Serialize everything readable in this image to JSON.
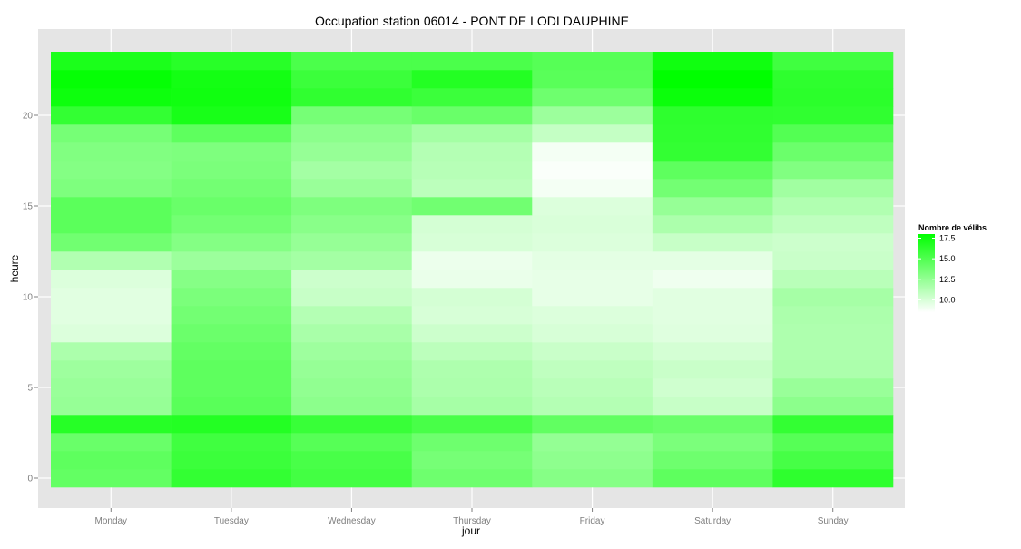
{
  "chart_data": {
    "type": "heatmap",
    "title": "Occupation station 06014 - PONT DE LODI DAUPHINE",
    "xlabel": "jour",
    "ylabel": "heure",
    "x_categories": [
      "Monday",
      "Tuesday",
      "Wednesday",
      "Thursday",
      "Friday",
      "Saturday",
      "Sunday"
    ],
    "y_values": [
      0,
      1,
      2,
      3,
      4,
      5,
      6,
      7,
      8,
      9,
      10,
      11,
      12,
      13,
      14,
      15,
      16,
      17,
      18,
      19,
      20,
      21,
      22,
      23
    ],
    "y_ticks": [
      0,
      5,
      10,
      15,
      20
    ],
    "grid": true,
    "legend": {
      "title": "Nombre de vélibs",
      "breaks": [
        10.0,
        12.5,
        15.0,
        17.5
      ],
      "break_labels": [
        "10.0",
        "12.5",
        "15.0",
        "17.5"
      ],
      "min": 8.5,
      "max": 18,
      "position": "right"
    },
    "color_low": "#ffffff",
    "color_high": "#00ff00",
    "panel_bg": "#e5e5e5",
    "values": [
      [
        14.3,
        16.1,
        15.5,
        13.9,
        13.0,
        14.5,
        16.3
      ],
      [
        14.5,
        15.8,
        15.3,
        13.6,
        12.7,
        13.9,
        15.4
      ],
      [
        14.1,
        15.6,
        14.8,
        13.9,
        12.5,
        13.4,
        14.8
      ],
      [
        16.6,
        16.7,
        15.9,
        15.3,
        14.4,
        14.1,
        16.1
      ],
      [
        12.4,
        14.7,
        12.8,
        11.8,
        11.3,
        10.6,
        12.8
      ],
      [
        12.3,
        14.5,
        12.6,
        11.6,
        11.1,
        10.3,
        12.3
      ],
      [
        12.1,
        14.5,
        12.4,
        11.5,
        10.9,
        10.5,
        11.6
      ],
      [
        11.6,
        14.3,
        12.1,
        11.0,
        10.5,
        10.1,
        11.5
      ],
      [
        9.8,
        14.0,
        11.7,
        10.4,
        10.0,
        9.7,
        11.5
      ],
      [
        9.6,
        13.7,
        11.3,
        10.0,
        9.8,
        9.6,
        11.6
      ],
      [
        9.6,
        13.4,
        10.6,
        10.1,
        9.4,
        9.6,
        11.8
      ],
      [
        9.8,
        13.0,
        10.4,
        9.3,
        9.4,
        9.1,
        11.1
      ],
      [
        11.4,
        12.2,
        11.9,
        9.2,
        9.5,
        9.5,
        10.5
      ],
      [
        13.8,
        13.1,
        12.4,
        10.0,
        9.8,
        10.6,
        10.4
      ],
      [
        14.6,
        13.7,
        12.9,
        10.1,
        9.9,
        11.6,
        10.9
      ],
      [
        14.6,
        14.1,
        13.3,
        13.8,
        9.8,
        12.4,
        11.4
      ],
      [
        13.3,
        13.7,
        12.3,
        11.0,
        8.9,
        13.7,
        12.0
      ],
      [
        13.1,
        13.4,
        11.9,
        11.2,
        8.7,
        14.5,
        13.2
      ],
      [
        13.2,
        13.3,
        12.4,
        11.3,
        8.9,
        16.1,
        14.0
      ],
      [
        13.6,
        14.5,
        12.8,
        11.9,
        10.7,
        16.2,
        14.9
      ],
      [
        16.1,
        17.1,
        13.6,
        14.1,
        12.2,
        16.3,
        16.2
      ],
      [
        17.5,
        17.4,
        16.2,
        15.8,
        13.9,
        17.6,
        16.4
      ],
      [
        17.8,
        17.3,
        15.8,
        16.7,
        14.7,
        18.2,
        16.3
      ],
      [
        17.0,
        16.5,
        15.2,
        15.2,
        14.8,
        17.4,
        15.6
      ]
    ]
  }
}
